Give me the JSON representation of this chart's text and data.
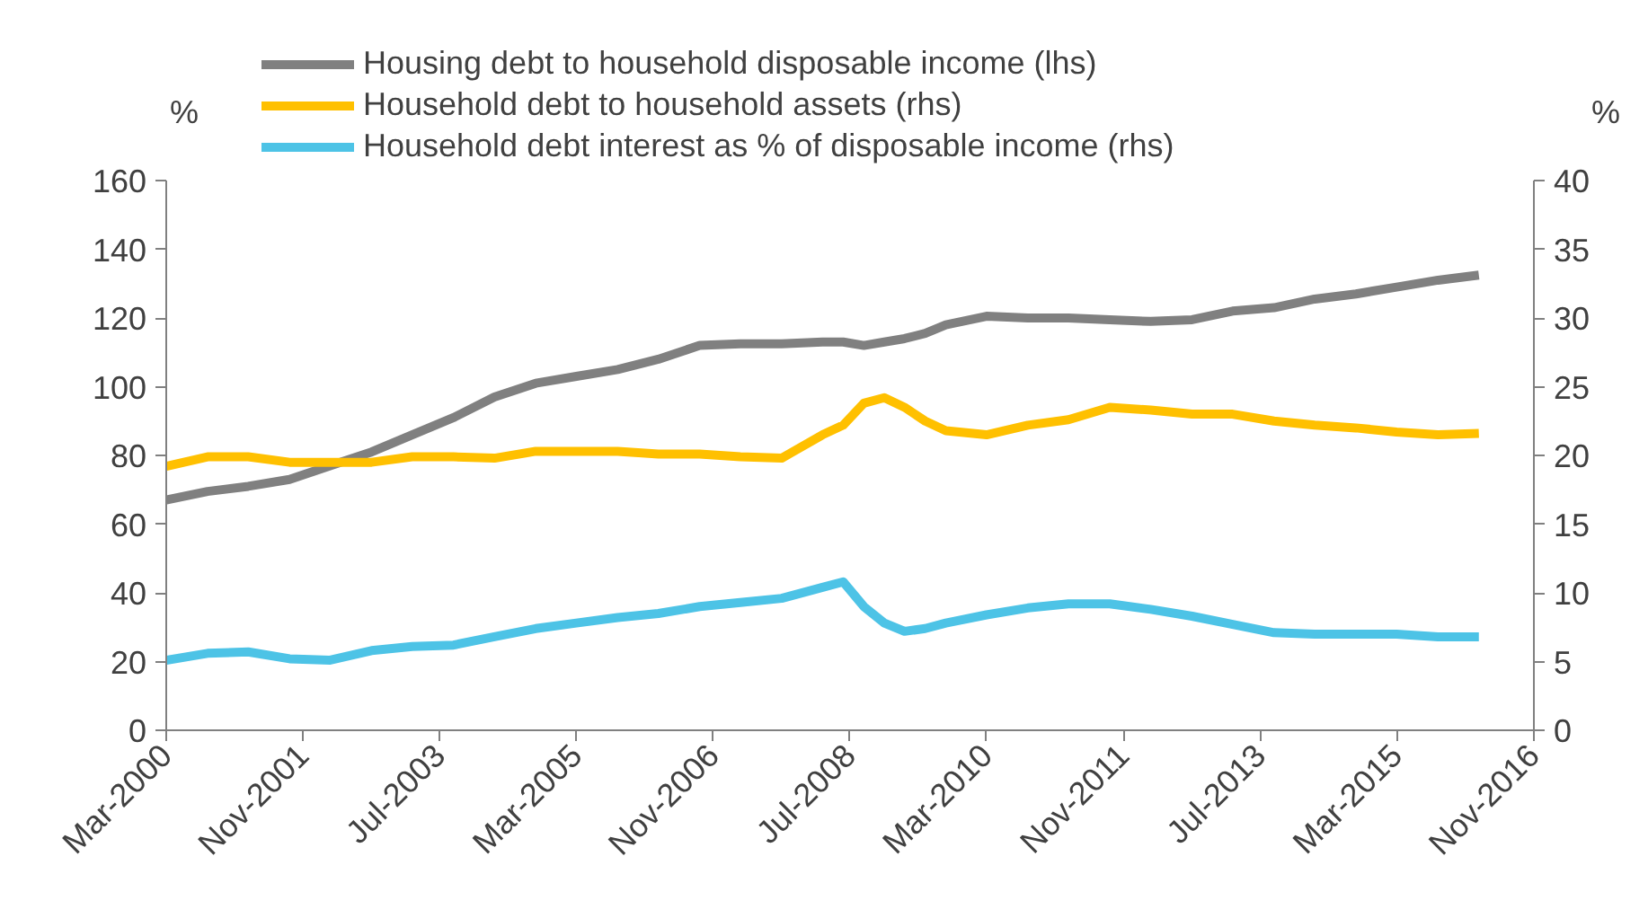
{
  "chart_data": {
    "type": "line",
    "ylabel": "%",
    "y2label": "%",
    "x": [
      "2000-03",
      "2000-09",
      "2001-03",
      "2001-09",
      "2002-03",
      "2002-09",
      "2003-03",
      "2003-09",
      "2004-03",
      "2004-09",
      "2005-03",
      "2005-09",
      "2006-03",
      "2006-09",
      "2007-03",
      "2007-09",
      "2008-03",
      "2008-06",
      "2008-09",
      "2008-12",
      "2009-03",
      "2009-06",
      "2009-09",
      "2010-03",
      "2010-09",
      "2011-03",
      "2011-09",
      "2012-03",
      "2012-09",
      "2013-03",
      "2013-09",
      "2014-03",
      "2014-09",
      "2015-03",
      "2015-09",
      "2016-03"
    ],
    "series": [
      {
        "name": "Housing debt to household disposable income (lhs)",
        "color": "#808080",
        "values": [
          67,
          69.5,
          71,
          73,
          77,
          81,
          86,
          91,
          97,
          101,
          103,
          105,
          108,
          112,
          112.5,
          112.5,
          113,
          113,
          112,
          113,
          114,
          115.5,
          118,
          120.5,
          120,
          120,
          119.5,
          119,
          119.5,
          122,
          123,
          125.5,
          127,
          129,
          131,
          132.5
        ]
      },
      {
        "name": "Household debt to household assets (rhs)",
        "color": "#ffc000",
        "axis": "y2",
        "values": [
          19.2,
          19.9,
          19.9,
          19.5,
          19.5,
          19.5,
          19.9,
          19.9,
          19.8,
          20.3,
          20.3,
          20.3,
          20.1,
          20.1,
          19.9,
          19.8,
          21.5,
          22.2,
          23.8,
          24.2,
          23.5,
          22.5,
          21.8,
          21.5,
          22.2,
          22.6,
          23.5,
          23.3,
          23,
          23,
          22.5,
          22.2,
          22,
          21.7,
          21.5,
          21.6
        ]
      },
      {
        "name": "Household debt interest as % of disposable income (rhs)",
        "color": "#4dc3e6",
        "axis": "y2",
        "values": [
          5.1,
          5.6,
          5.7,
          5.2,
          5.1,
          5.8,
          6.1,
          6.2,
          6.8,
          7.4,
          7.8,
          8.2,
          8.5,
          9.0,
          9.3,
          9.6,
          10.4,
          10.8,
          9.0,
          7.8,
          7.2,
          7.4,
          7.8,
          8.4,
          8.9,
          9.2,
          9.2,
          8.8,
          8.3,
          7.7,
          7.1,
          7.0,
          7.0,
          7.0,
          6.8,
          6.8
        ]
      }
    ],
    "xlim": [
      "2000-03",
      "2016-11"
    ],
    "xticks": [
      {
        "value": "2000-03",
        "label": "Mar-2000"
      },
      {
        "value": "2001-11",
        "label": "Nov-2001"
      },
      {
        "value": "2003-07",
        "label": "Jul-2003"
      },
      {
        "value": "2005-03",
        "label": "Mar-2005"
      },
      {
        "value": "2006-11",
        "label": "Nov-2006"
      },
      {
        "value": "2008-07",
        "label": "Jul-2008"
      },
      {
        "value": "2010-03",
        "label": "Mar-2010"
      },
      {
        "value": "2011-11",
        "label": "Nov-2011"
      },
      {
        "value": "2013-07",
        "label": "Jul-2013"
      },
      {
        "value": "2015-03",
        "label": "Mar-2015"
      },
      {
        "value": "2016-11",
        "label": "Nov-2016"
      }
    ],
    "ylim": [
      0,
      160
    ],
    "yticks": [
      0,
      20,
      40,
      60,
      80,
      100,
      120,
      140,
      160
    ],
    "y2lim": [
      0,
      40
    ],
    "y2ticks": [
      0,
      5,
      10,
      15,
      20,
      25,
      30,
      35,
      40
    ],
    "grid": false,
    "legend": "top",
    "marker": "none",
    "line_style": "solid"
  }
}
